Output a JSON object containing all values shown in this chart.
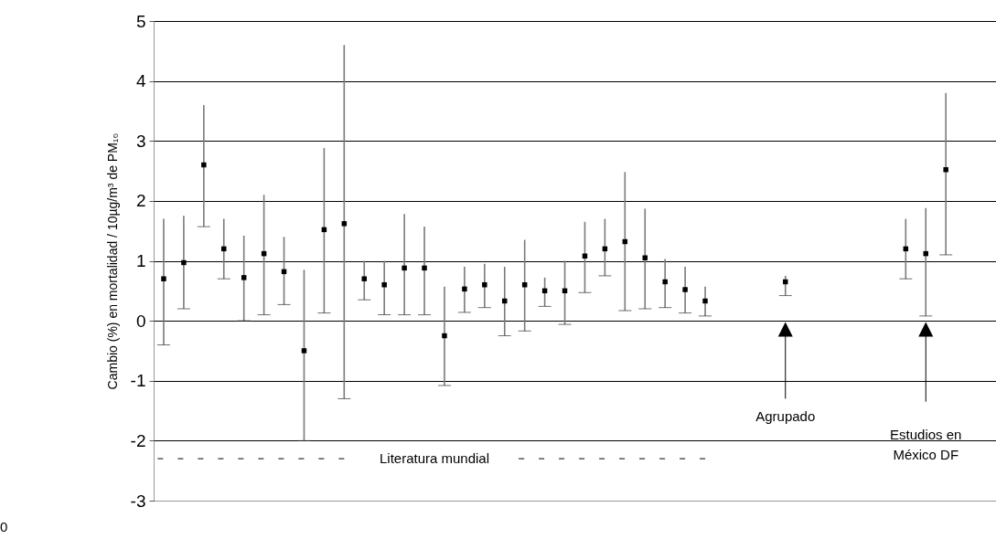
{
  "chart_data": {
    "type": "scatter",
    "ylabel": "Cambio (%) en mortalidad / 10µg/m³ de PM₁₀",
    "categories": [
      null,
      null,
      null,
      null,
      null,
      null,
      null,
      null,
      null,
      null,
      null,
      null,
      null,
      null,
      null,
      null,
      null,
      null,
      null,
      null,
      null,
      null,
      null,
      null,
      null,
      null,
      null,
      null,
      null,
      null,
      null,
      null,
      null,
      null,
      null,
      null,
      null,
      null,
      null,
      null,
      null,
      null
    ],
    "series": [
      {
        "color": "#000000",
        "marker": "square",
        "values": [
          0.7,
          0.97,
          2.6,
          1.2,
          0.72,
          1.12,
          0.82,
          -0.5,
          1.52,
          1.62,
          0.7,
          0.6,
          0.88,
          0.88,
          -0.25,
          0.53,
          0.6,
          0.33,
          0.6,
          0.5,
          0.5,
          1.08,
          1.2,
          1.32,
          1.05,
          0.65,
          0.52,
          0.33,
          null,
          null,
          null,
          0.65,
          null,
          null,
          null,
          null,
          null,
          1.2,
          1.12,
          2.52,
          null,
          null
        ],
        "errors": [
          [
            -0.4,
            1.7
          ],
          [
            0.2,
            1.75
          ],
          [
            1.57,
            3.6
          ],
          [
            0.7,
            1.7
          ],
          [
            0,
            1.42
          ],
          [
            0.1,
            2.1
          ],
          [
            0.27,
            1.4
          ],
          [
            -2.0,
            0.85
          ],
          [
            0.13,
            2.88
          ],
          [
            -1.3,
            4.6
          ],
          [
            0.35,
            1.0
          ],
          [
            0.1,
            1.0
          ],
          [
            0.1,
            1.78
          ],
          [
            0.1,
            1.57
          ],
          [
            -1.08,
            0.57
          ],
          [
            0.14,
            0.9
          ],
          [
            0.22,
            0.95
          ],
          [
            -0.25,
            0.9
          ],
          [
            -0.17,
            1.35
          ],
          [
            0.24,
            0.72
          ],
          [
            -0.06,
            1.0
          ],
          [
            0.47,
            1.65
          ],
          [
            0.75,
            1.7
          ],
          [
            0.17,
            2.48
          ],
          [
            0.2,
            1.87
          ],
          [
            0.22,
            1.03
          ],
          [
            0.13,
            0.9
          ],
          [
            0.08,
            0.57
          ],
          null,
          null,
          null,
          [
            0.42,
            0.75
          ],
          null,
          null,
          null,
          null,
          null,
          [
            0.7,
            1.7
          ],
          [
            0.08,
            1.88
          ],
          [
            1.1,
            3.8
          ],
          null,
          null
        ]
      }
    ],
    "ylim": [
      -3,
      5
    ],
    "yticks": [
      -3,
      -2,
      -1,
      0,
      1,
      2,
      3,
      4,
      5
    ],
    "grid": "y",
    "tick_labels": "y",
    "annotations": [
      "Literatura mundial",
      "Agrupado",
      "Estudios en México DF",
      "0"
    ]
  }
}
